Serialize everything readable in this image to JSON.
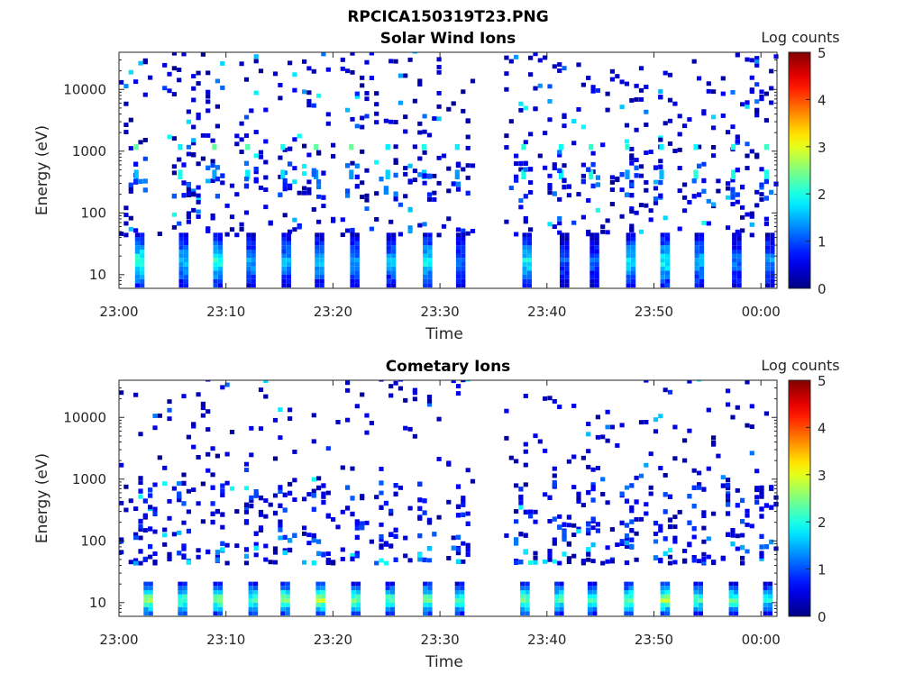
{
  "figure_title": "RPCICA150319T23.PNG",
  "chart_data": [
    {
      "type": "heatmap",
      "title": "Solar Wind Ions",
      "xlabel": "Time",
      "ylabel": "Energy (eV)",
      "x_tick_labels": [
        "23:00",
        "23:10",
        "23:20",
        "23:30",
        "23:40",
        "23:50",
        "00:00"
      ],
      "y_tick_labels": [
        "10",
        "100",
        "1000",
        "10000"
      ],
      "y_scale": "log",
      "ylim": [
        6,
        40000
      ],
      "colorbar": {
        "label": "Log counts",
        "ticks": [
          "0",
          "1",
          "2",
          "3",
          "4",
          "5"
        ],
        "range": [
          0,
          5
        ],
        "colormap": "jet"
      },
      "data_gap_minutes": [
        33,
        36
      ],
      "clusters": [
        {
          "t": 1.7,
          "ebase": 27,
          "peak": 2.2
        },
        {
          "t": 5.8,
          "ebase": 27,
          "peak": 1.6
        },
        {
          "t": 9.0,
          "ebase": 27,
          "peak": 2.1
        },
        {
          "t": 12.1,
          "ebase": 27,
          "peak": 1.5
        },
        {
          "t": 15.4,
          "ebase": 27,
          "peak": 1.5
        },
        {
          "t": 18.5,
          "ebase": 27,
          "peak": 1.6
        },
        {
          "t": 21.8,
          "ebase": 27,
          "peak": 1.5
        },
        {
          "t": 25.2,
          "ebase": 27,
          "peak": 1.5
        },
        {
          "t": 28.6,
          "ebase": 27,
          "peak": 1.9
        },
        {
          "t": 31.7,
          "ebase": 27,
          "peak": 1.2
        },
        {
          "t": 37.9,
          "ebase": 27,
          "peak": 2.0
        },
        {
          "t": 41.4,
          "ebase": 27,
          "peak": 1.0
        },
        {
          "t": 44.2,
          "ebase": 27,
          "peak": 1.1
        },
        {
          "t": 47.6,
          "ebase": 27,
          "peak": 1.8
        },
        {
          "t": 50.8,
          "ebase": 27,
          "peak": 2.0
        },
        {
          "t": 54.0,
          "ebase": 27,
          "peak": 1.6
        },
        {
          "t": 57.5,
          "ebase": 27,
          "peak": 1.2
        },
        {
          "t": 60.6,
          "ebase": 27,
          "peak": 1.4
        }
      ],
      "scatter_energy_range": [
        40,
        40000
      ],
      "scatter_count": 620
    },
    {
      "type": "heatmap",
      "title": "Cometary Ions",
      "xlabel": "Time",
      "ylabel": "Energy (eV)",
      "x_tick_labels": [
        "23:00",
        "23:10",
        "23:20",
        "23:30",
        "23:40",
        "23:50",
        "00:00"
      ],
      "y_tick_labels": [
        "10",
        "100",
        "1000",
        "10000"
      ],
      "y_scale": "log",
      "ylim": [
        6,
        40000
      ],
      "colorbar": {
        "label": "Log counts",
        "ticks": [
          "0",
          "1",
          "2",
          "3",
          "4",
          "5"
        ],
        "range": [
          0,
          5
        ],
        "colormap": "jet"
      },
      "data_gap_minutes": [
        33,
        36
      ],
      "clusters": [
        {
          "t": 2.5,
          "ebase": 12,
          "peak": 2.8
        },
        {
          "t": 5.7,
          "ebase": 12,
          "peak": 2.4
        },
        {
          "t": 9.0,
          "ebase": 12,
          "peak": 2.6
        },
        {
          "t": 12.3,
          "ebase": 12,
          "peak": 2.3
        },
        {
          "t": 15.3,
          "ebase": 12,
          "peak": 2.7
        },
        {
          "t": 18.6,
          "ebase": 12,
          "peak": 2.9
        },
        {
          "t": 21.9,
          "ebase": 12,
          "peak": 2.5
        },
        {
          "t": 25.1,
          "ebase": 12,
          "peak": 2.4
        },
        {
          "t": 28.6,
          "ebase": 12,
          "peak": 2.6
        },
        {
          "t": 31.6,
          "ebase": 12,
          "peak": 2.2
        },
        {
          "t": 37.7,
          "ebase": 12,
          "peak": 2.6
        },
        {
          "t": 40.9,
          "ebase": 12,
          "peak": 2.3
        },
        {
          "t": 44.0,
          "ebase": 12,
          "peak": 2.2
        },
        {
          "t": 47.4,
          "ebase": 12,
          "peak": 2.5
        },
        {
          "t": 50.8,
          "ebase": 12,
          "peak": 2.8
        },
        {
          "t": 53.9,
          "ebase": 12,
          "peak": 2.3
        },
        {
          "t": 57.2,
          "ebase": 12,
          "peak": 2.4
        },
        {
          "t": 60.4,
          "ebase": 12,
          "peak": 2.0
        }
      ],
      "scatter_energy_range": [
        40,
        40000
      ],
      "scatter_count": 480
    }
  ]
}
